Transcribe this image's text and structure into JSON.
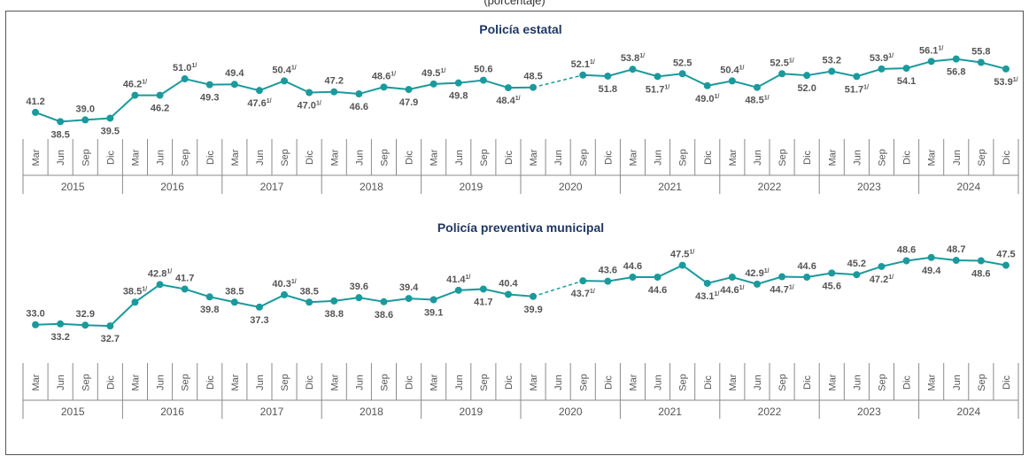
{
  "caption": "(porcentaje)",
  "colors": {
    "line": "#1a9a9c",
    "title": "#1f3864",
    "label": "#555555",
    "axis": "#8a8a8a"
  },
  "chart_data": [
    {
      "type": "line",
      "title": "Policía estatal",
      "quarters": [
        "Mar",
        "Jun",
        "Sep",
        "Dic"
      ],
      "years": [
        "2015",
        "2016",
        "2017",
        "2018",
        "2019",
        "2020",
        "2021",
        "2022",
        "2023",
        "2024"
      ],
      "values": [
        41.2,
        38.5,
        39.0,
        39.5,
        46.2,
        46.2,
        51.0,
        49.3,
        49.4,
        47.6,
        50.4,
        47.0,
        47.2,
        46.6,
        48.6,
        47.9,
        49.5,
        49.8,
        50.6,
        48.4,
        48.5,
        null,
        52.1,
        51.8,
        53.8,
        51.7,
        52.5,
        49.0,
        50.4,
        48.5,
        52.5,
        52.0,
        53.2,
        51.7,
        53.9,
        54.1,
        56.1,
        56.8,
        55.8,
        53.9
      ],
      "labels": [
        "41.2",
        "38.5",
        "39.0",
        "39.5",
        "46.2",
        "46.2",
        "51.0",
        "49.3",
        "49.4",
        "47.6",
        "50.4",
        "47.0",
        "47.2",
        "46.6",
        "48.6",
        "47.9",
        "49.5",
        "49.8",
        "50.6",
        "48.4",
        "48.5",
        "",
        "52.1",
        "51.8",
        "53.8",
        "51.7",
        "52.5",
        "49.0",
        "50.4",
        "48.5",
        "52.5",
        "52.0",
        "53.2",
        "51.7",
        "53.9",
        "54.1",
        "56.1",
        "56.8",
        "55.8",
        "53.9"
      ],
      "marks": [
        "",
        "",
        "",
        "",
        "1/",
        "",
        "1/",
        "",
        "",
        "1/",
        "1/",
        "1/",
        "",
        "",
        "1/",
        "",
        "1/",
        "",
        "",
        "1/",
        "",
        "",
        "1/",
        "",
        "1/",
        "1/",
        "",
        "1/",
        "1/",
        "1/",
        "1/",
        "",
        "",
        "1/",
        "1/",
        "",
        "1/",
        "",
        "",
        "1/"
      ],
      "label_pos": [
        "a",
        "b",
        "a",
        "b",
        "a",
        "b",
        "a",
        "b",
        "a",
        "b",
        "a",
        "b",
        "a",
        "b",
        "a",
        "b",
        "a",
        "b",
        "a",
        "b",
        "a",
        "a",
        "a",
        "b",
        "a",
        "b",
        "a",
        "b",
        "a",
        "b",
        "a",
        "b",
        "a",
        "b",
        "a",
        "b",
        "a",
        "b",
        "a",
        "b"
      ],
      "dashed_gap": [
        20,
        22
      ],
      "ylim": [
        36,
        58
      ]
    },
    {
      "type": "line",
      "title": "Policía preventiva municipal",
      "quarters": [
        "Mar",
        "Jun",
        "Sep",
        "Dic"
      ],
      "years": [
        "2015",
        "2016",
        "2017",
        "2018",
        "2019",
        "2020",
        "2021",
        "2022",
        "2023",
        "2024"
      ],
      "values": [
        33.0,
        33.2,
        32.9,
        32.7,
        38.5,
        42.8,
        41.7,
        39.8,
        38.5,
        37.3,
        40.3,
        38.5,
        38.8,
        39.6,
        38.6,
        39.4,
        39.1,
        41.4,
        41.7,
        40.4,
        39.9,
        null,
        43.7,
        43.6,
        44.6,
        44.6,
        47.5,
        43.1,
        44.6,
        42.9,
        44.7,
        44.6,
        45.6,
        45.2,
        47.2,
        48.6,
        49.4,
        48.7,
        48.6,
        47.5
      ],
      "labels": [
        "33.0",
        "33.2",
        "32.9",
        "32.7",
        "38.5",
        "42.8",
        "41.7",
        "39.8",
        "38.5",
        "37.3",
        "40.3",
        "38.5",
        "38.8",
        "39.6",
        "38.6",
        "39.4",
        "39.1",
        "41.4",
        "41.7",
        "40.4",
        "39.9",
        "",
        "43.7",
        "43.6",
        "44.6",
        "44.6",
        "47.5",
        "43.1",
        "44.6",
        "42.9",
        "44.7",
        "44.6",
        "45.6",
        "45.2",
        "47.2",
        "48.6",
        "49.4",
        "48.7",
        "48.6",
        "47.5"
      ],
      "marks": [
        "",
        "",
        "",
        "",
        "1/",
        "1/",
        "",
        "",
        "",
        "",
        "1/",
        "",
        "",
        "",
        "",
        "",
        "",
        "1/",
        "",
        "",
        "",
        "",
        "1/",
        "",
        "",
        "",
        "1/",
        "1/",
        "1/",
        "1/",
        "1/",
        "",
        "",
        "",
        "1/",
        "",
        "",
        "",
        "",
        ""
      ],
      "label_pos": [
        "a",
        "b",
        "a",
        "b",
        "a",
        "a",
        "a",
        "b",
        "a",
        "b",
        "a",
        "a",
        "b",
        "a",
        "b",
        "a",
        "b",
        "a",
        "b",
        "a",
        "b",
        "a",
        "b",
        "a",
        "a",
        "b",
        "a",
        "b",
        "b",
        "a",
        "b",
        "a",
        "b",
        "a",
        "b",
        "a",
        "b",
        "a",
        "b",
        "a"
      ],
      "dashed_gap": [
        20,
        22
      ],
      "ylim": [
        31,
        50
      ]
    }
  ]
}
